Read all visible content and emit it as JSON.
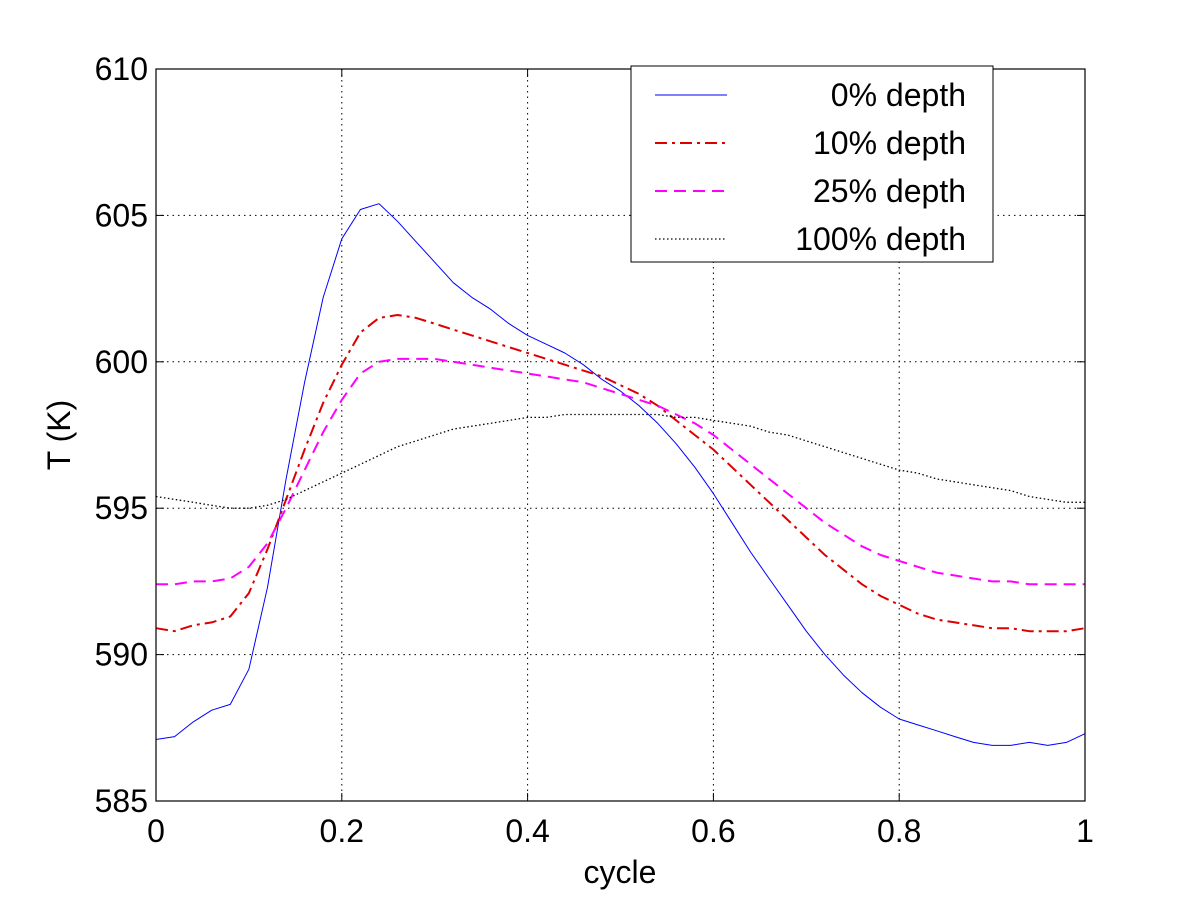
{
  "chart_data": {
    "type": "line",
    "title": "",
    "xlabel": "cycle",
    "ylabel": "T (K)",
    "xlim": [
      0,
      1
    ],
    "ylim": [
      585,
      610
    ],
    "xticks": [
      0,
      0.2,
      0.4,
      0.6,
      0.8,
      1
    ],
    "xtick_labels": [
      "0",
      "0.2",
      "0.4",
      "0.6",
      "0.8",
      "1"
    ],
    "yticks": [
      585,
      590,
      595,
      600,
      605,
      610
    ],
    "ytick_labels": [
      "585",
      "590",
      "595",
      "600",
      "605",
      "610"
    ],
    "grid": true,
    "legend_position": "top-right",
    "series": [
      {
        "name": "0% depth",
        "color": "#0000ff",
        "style": "solid",
        "x": [
          0,
          0.02,
          0.04,
          0.06,
          0.08,
          0.1,
          0.12,
          0.14,
          0.16,
          0.18,
          0.2,
          0.22,
          0.24,
          0.26,
          0.28,
          0.3,
          0.32,
          0.34,
          0.36,
          0.38,
          0.4,
          0.42,
          0.44,
          0.46,
          0.48,
          0.5,
          0.52,
          0.54,
          0.56,
          0.58,
          0.6,
          0.62,
          0.64,
          0.66,
          0.68,
          0.7,
          0.72,
          0.74,
          0.76,
          0.78,
          0.8,
          0.82,
          0.84,
          0.86,
          0.88,
          0.9,
          0.92,
          0.94,
          0.96,
          0.98,
          1.0
        ],
        "y": [
          587.1,
          587.2,
          587.7,
          588.1,
          588.3,
          589.5,
          592.3,
          596.0,
          599.3,
          602.2,
          604.2,
          605.2,
          605.4,
          604.8,
          604.1,
          603.4,
          602.7,
          602.2,
          601.8,
          601.3,
          600.9,
          600.6,
          600.3,
          599.9,
          599.4,
          599.0,
          598.5,
          597.9,
          597.2,
          596.4,
          595.5,
          594.5,
          593.5,
          592.6,
          591.7,
          590.8,
          590.0,
          589.3,
          588.7,
          588.2,
          587.8,
          587.6,
          587.4,
          587.2,
          587.0,
          586.9,
          586.9,
          587.0,
          586.9,
          587.0,
          587.3
        ]
      },
      {
        "name": "10% depth",
        "color": "#dd0000",
        "style": "dashdot",
        "x": [
          0,
          0.02,
          0.04,
          0.06,
          0.08,
          0.1,
          0.12,
          0.14,
          0.16,
          0.18,
          0.2,
          0.22,
          0.24,
          0.26,
          0.28,
          0.3,
          0.32,
          0.34,
          0.36,
          0.38,
          0.4,
          0.42,
          0.44,
          0.46,
          0.48,
          0.5,
          0.52,
          0.54,
          0.56,
          0.58,
          0.6,
          0.62,
          0.64,
          0.66,
          0.68,
          0.7,
          0.72,
          0.74,
          0.76,
          0.78,
          0.8,
          0.82,
          0.84,
          0.86,
          0.88,
          0.9,
          0.92,
          0.94,
          0.96,
          0.98,
          1.0
        ],
        "y": [
          590.9,
          590.8,
          591.0,
          591.1,
          591.3,
          592.1,
          593.6,
          595.3,
          597.0,
          598.6,
          599.9,
          601.0,
          601.5,
          601.6,
          601.5,
          601.3,
          601.1,
          600.9,
          600.7,
          600.5,
          600.3,
          600.1,
          599.9,
          599.7,
          599.5,
          599.2,
          598.9,
          598.5,
          598.0,
          597.5,
          597.0,
          596.4,
          595.8,
          595.2,
          594.6,
          594.0,
          593.4,
          592.9,
          592.4,
          592.0,
          591.7,
          591.4,
          591.2,
          591.1,
          591.0,
          590.9,
          590.9,
          590.8,
          590.8,
          590.8,
          590.9
        ]
      },
      {
        "name": "25% depth",
        "color": "#ff00ff",
        "style": "dashed",
        "x": [
          0,
          0.02,
          0.04,
          0.06,
          0.08,
          0.1,
          0.12,
          0.14,
          0.16,
          0.18,
          0.2,
          0.22,
          0.24,
          0.26,
          0.28,
          0.3,
          0.32,
          0.34,
          0.36,
          0.38,
          0.4,
          0.42,
          0.44,
          0.46,
          0.48,
          0.5,
          0.52,
          0.54,
          0.56,
          0.58,
          0.6,
          0.62,
          0.64,
          0.66,
          0.68,
          0.7,
          0.72,
          0.74,
          0.76,
          0.78,
          0.8,
          0.82,
          0.84,
          0.86,
          0.88,
          0.9,
          0.92,
          0.94,
          0.96,
          0.98,
          1.0
        ],
        "y": [
          592.4,
          592.4,
          592.5,
          592.5,
          592.6,
          593.0,
          593.8,
          595.0,
          596.3,
          597.6,
          598.7,
          599.6,
          600.0,
          600.1,
          600.1,
          600.1,
          600.0,
          599.9,
          599.8,
          599.7,
          599.6,
          599.5,
          599.4,
          599.3,
          599.1,
          598.9,
          598.7,
          598.5,
          598.2,
          597.9,
          597.5,
          597.0,
          596.5,
          596.0,
          595.5,
          595.0,
          594.5,
          594.1,
          593.7,
          593.4,
          593.2,
          593.0,
          592.8,
          592.7,
          592.6,
          592.5,
          592.5,
          592.4,
          592.4,
          592.4,
          592.4
        ]
      },
      {
        "name": "100% depth",
        "color": "#000000",
        "style": "dotted",
        "x": [
          0,
          0.02,
          0.04,
          0.06,
          0.08,
          0.1,
          0.12,
          0.14,
          0.16,
          0.18,
          0.2,
          0.22,
          0.24,
          0.26,
          0.28,
          0.3,
          0.32,
          0.34,
          0.36,
          0.38,
          0.4,
          0.42,
          0.44,
          0.46,
          0.48,
          0.5,
          0.52,
          0.54,
          0.56,
          0.58,
          0.6,
          0.62,
          0.64,
          0.66,
          0.68,
          0.7,
          0.72,
          0.74,
          0.76,
          0.78,
          0.8,
          0.82,
          0.84,
          0.86,
          0.88,
          0.9,
          0.92,
          0.94,
          0.96,
          0.98,
          1.0
        ],
        "y": [
          595.4,
          595.3,
          595.2,
          595.1,
          595.0,
          595.0,
          595.1,
          595.3,
          595.6,
          595.9,
          596.2,
          596.5,
          596.8,
          597.1,
          597.3,
          597.5,
          597.7,
          597.8,
          597.9,
          598.0,
          598.1,
          598.1,
          598.2,
          598.2,
          598.2,
          598.2,
          598.2,
          598.2,
          598.1,
          598.1,
          598.0,
          597.9,
          597.8,
          597.6,
          597.5,
          597.3,
          597.1,
          596.9,
          596.7,
          596.5,
          596.3,
          596.2,
          596.0,
          595.9,
          595.8,
          595.7,
          595.6,
          595.4,
          595.3,
          595.2,
          595.2
        ]
      }
    ]
  }
}
